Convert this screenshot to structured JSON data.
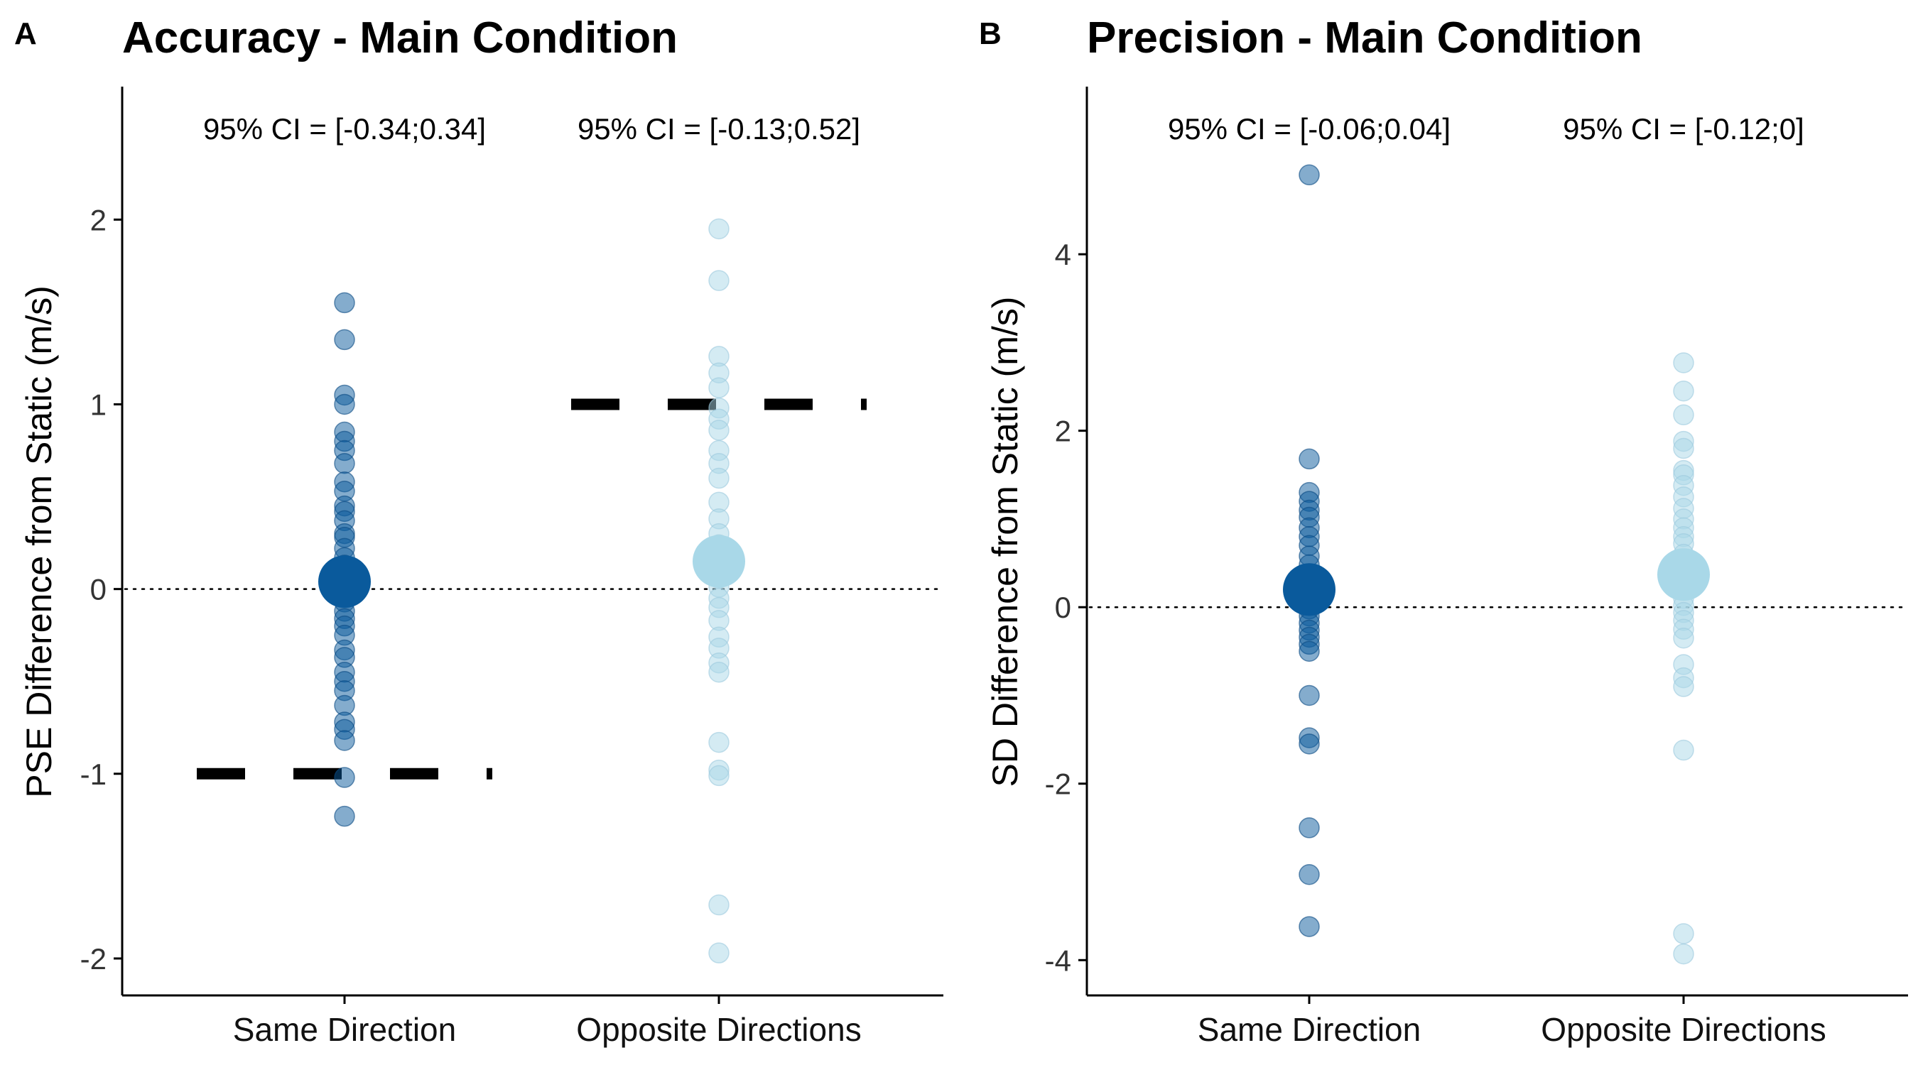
{
  "chart_data": [
    {
      "type": "scatter",
      "panel_label": "A",
      "title": "Accuracy - Main Condition",
      "ylabel": "PSE Difference from Static (m/s)",
      "xlabel": "",
      "categories": [
        "Same Direction",
        "Opposite Directions"
      ],
      "ylim": [
        -2.2,
        2.72
      ],
      "yticks": [
        -2,
        -1,
        0,
        1,
        2
      ],
      "ytick_labels": [
        "-2",
        "-1",
        "0",
        "1",
        "2"
      ],
      "grid": false,
      "reference_line": 0,
      "ci_labels": [
        "95% CI = [-0.34;0.34]",
        "95% CI = [-0.13;0.52]"
      ],
      "equivalence_bounds": [
        {
          "category": "Same Direction",
          "value": -1
        },
        {
          "category": "Opposite Directions",
          "value": 1
        }
      ],
      "series": [
        {
          "category": "Same Direction",
          "color": "#0a5a9c",
          "points": [
            1.55,
            1.35,
            1.05,
            1.0,
            0.85,
            0.8,
            0.75,
            0.68,
            0.58,
            0.53,
            0.45,
            0.42,
            0.37,
            0.3,
            0.28,
            0.22,
            0.17,
            0.13,
            0.1,
            0.06,
            0.02,
            -0.02,
            -0.07,
            -0.12,
            -0.16,
            -0.2,
            -0.25,
            -0.33,
            -0.37,
            -0.45,
            -0.5,
            -0.55,
            -0.63,
            -0.72,
            -0.76,
            -0.82,
            -1.02,
            -1.23
          ],
          "mean": 0.04
        },
        {
          "category": "Opposite Directions",
          "color": "#a9d8e8",
          "points": [
            1.95,
            1.67,
            1.26,
            1.17,
            1.09,
            0.98,
            0.92,
            0.86,
            0.75,
            0.68,
            0.6,
            0.47,
            0.38,
            0.3,
            0.24,
            0.18,
            0.12,
            0.06,
            0.01,
            -0.05,
            -0.1,
            -0.17,
            -0.26,
            -0.32,
            -0.4,
            -0.45,
            -0.83,
            -0.98,
            -1.01,
            -1.71,
            -1.97
          ],
          "mean": 0.15
        }
      ]
    },
    {
      "type": "scatter",
      "panel_label": "B",
      "title": "Precision - Main Condition",
      "ylabel": "SD Difference from Static (m/s)",
      "xlabel": "",
      "categories": [
        "Same Direction",
        "Opposite Directions"
      ],
      "ylim": [
        -4.4,
        5.9
      ],
      "yticks": [
        -4,
        -2,
        0,
        2,
        4
      ],
      "ytick_labels": [
        "-4",
        "-2",
        "0",
        "2",
        "4"
      ],
      "grid": false,
      "reference_line": 0,
      "ci_labels": [
        "95% CI = [-0.06;0.04]",
        "95% CI = [-0.12;0]"
      ],
      "series": [
        {
          "category": "Same Direction",
          "color": "#0a5a9c",
          "points": [
            4.9,
            1.68,
            1.3,
            1.2,
            1.1,
            1.02,
            0.9,
            0.8,
            0.7,
            0.58,
            0.48,
            0.38,
            0.3,
            0.22,
            0.14,
            0.06,
            -0.02,
            -0.1,
            -0.18,
            -0.26,
            -0.34,
            -0.42,
            -0.5,
            -1.0,
            -1.48,
            -1.55,
            -2.5,
            -3.03,
            -3.62
          ],
          "mean": 0.2
        },
        {
          "category": "Opposite Directions",
          "color": "#a9d8e8",
          "points": [
            2.77,
            2.45,
            2.18,
            1.88,
            1.8,
            1.55,
            1.5,
            1.38,
            1.25,
            1.12,
            1.0,
            0.9,
            0.8,
            0.72,
            0.6,
            0.5,
            0.42,
            0.3,
            0.2,
            0.1,
            0.02,
            -0.06,
            -0.15,
            -0.25,
            -0.35,
            -0.65,
            -0.8,
            -0.9,
            -1.62,
            -3.7,
            -3.93
          ],
          "mean": 0.37
        }
      ]
    }
  ]
}
